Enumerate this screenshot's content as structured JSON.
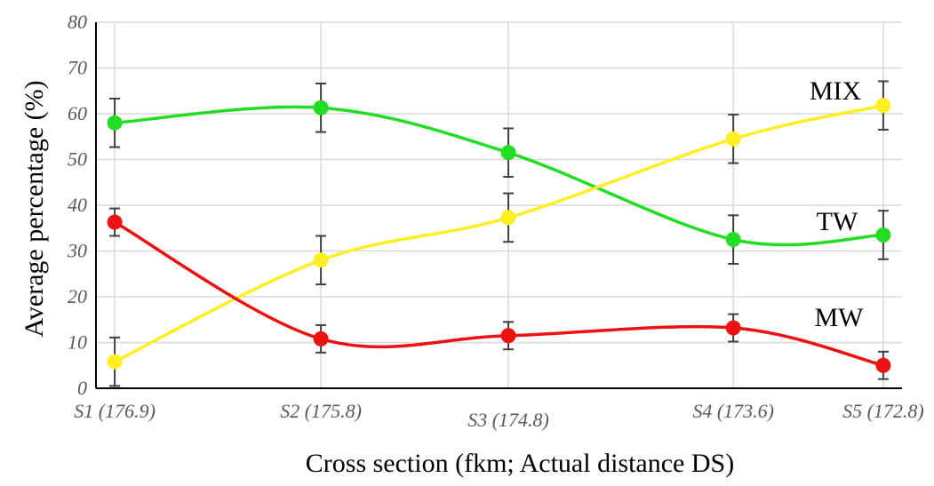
{
  "chart_data": {
    "type": "line",
    "xlabel": "Cross section (fkm; Actual distance DS)",
    "ylabel": "Average percentage (%)",
    "ylim": [
      0,
      80
    ],
    "yticks": [
      0,
      10,
      20,
      30,
      40,
      50,
      60,
      70,
      80
    ],
    "grid": true,
    "categories": [
      "S1 (176.9)",
      "S2 (175.8)",
      "S3 (174.8)",
      "S4 (173.6)",
      "S5 (172.8)"
    ],
    "x": [
      176.9,
      175.8,
      174.8,
      173.6,
      172.8
    ],
    "series": [
      {
        "name": "TW",
        "color": "#22dd22",
        "values": [
          58.0,
          61.3,
          51.5,
          32.5,
          33.5
        ],
        "error": [
          5.3,
          5.3,
          5.3,
          5.3,
          5.3
        ]
      },
      {
        "name": "MIX",
        "color": "#ffee22",
        "values": [
          5.8,
          28.0,
          37.3,
          54.5,
          61.8
        ],
        "error": [
          5.3,
          5.3,
          5.3,
          5.3,
          5.3
        ]
      },
      {
        "name": "MW",
        "color": "#ee1111",
        "values": [
          36.3,
          10.8,
          11.5,
          13.2,
          5.0
        ],
        "error": [
          3.0,
          3.0,
          3.0,
          3.0,
          3.0
        ]
      }
    ]
  }
}
